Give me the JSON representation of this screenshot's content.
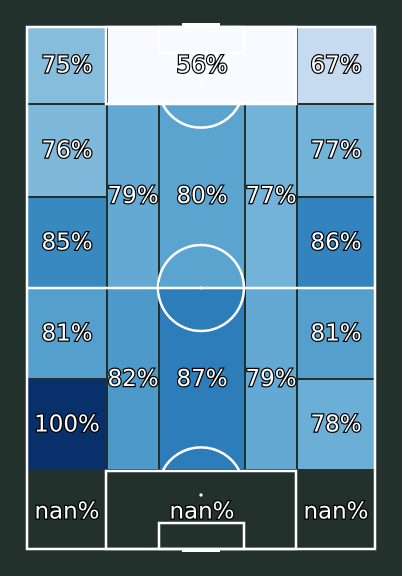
{
  "chart_data": {
    "type": "heatmap",
    "title": "",
    "colors": {
      "pitch_background": "#22312b",
      "pitch_lines": "#ffffff",
      "colormap": "Blues",
      "nan_cell": "#22312b"
    },
    "value_range": [
      0,
      100
    ],
    "zones": [
      {
        "zone": "top-left",
        "value": 75,
        "label": "75%"
      },
      {
        "zone": "top-center",
        "value": 56,
        "label": "56%"
      },
      {
        "zone": "top-right",
        "value": 67,
        "label": "67%"
      },
      {
        "zone": "row2-left",
        "value": 76,
        "label": "76%"
      },
      {
        "zone": "row2-right",
        "value": 77,
        "label": "77%"
      },
      {
        "zone": "upper-half-space-left",
        "value": 79,
        "label": "79%"
      },
      {
        "zone": "upper-half-center",
        "value": 80,
        "label": "80%"
      },
      {
        "zone": "upper-half-space-right",
        "value": 77,
        "label": "77%"
      },
      {
        "zone": "row3-left",
        "value": 85,
        "label": "85%"
      },
      {
        "zone": "row3-right",
        "value": 86,
        "label": "86%"
      },
      {
        "zone": "row4-left",
        "value": 81,
        "label": "81%"
      },
      {
        "zone": "row4-right",
        "value": 81,
        "label": "81%"
      },
      {
        "zone": "lower-half-space-left",
        "value": 82,
        "label": "82%"
      },
      {
        "zone": "lower-half-center",
        "value": 87,
        "label": "87%"
      },
      {
        "zone": "lower-half-space-right",
        "value": 79,
        "label": "79%"
      },
      {
        "zone": "row5-left",
        "value": 100,
        "label": "100%"
      },
      {
        "zone": "row5-right",
        "value": 78,
        "label": "78%"
      },
      {
        "zone": "bottom-left",
        "value": null,
        "label": "nan%"
      },
      {
        "zone": "bottom-center",
        "value": null,
        "label": "nan%"
      },
      {
        "zone": "bottom-right",
        "value": null,
        "label": "nan%"
      }
    ]
  }
}
